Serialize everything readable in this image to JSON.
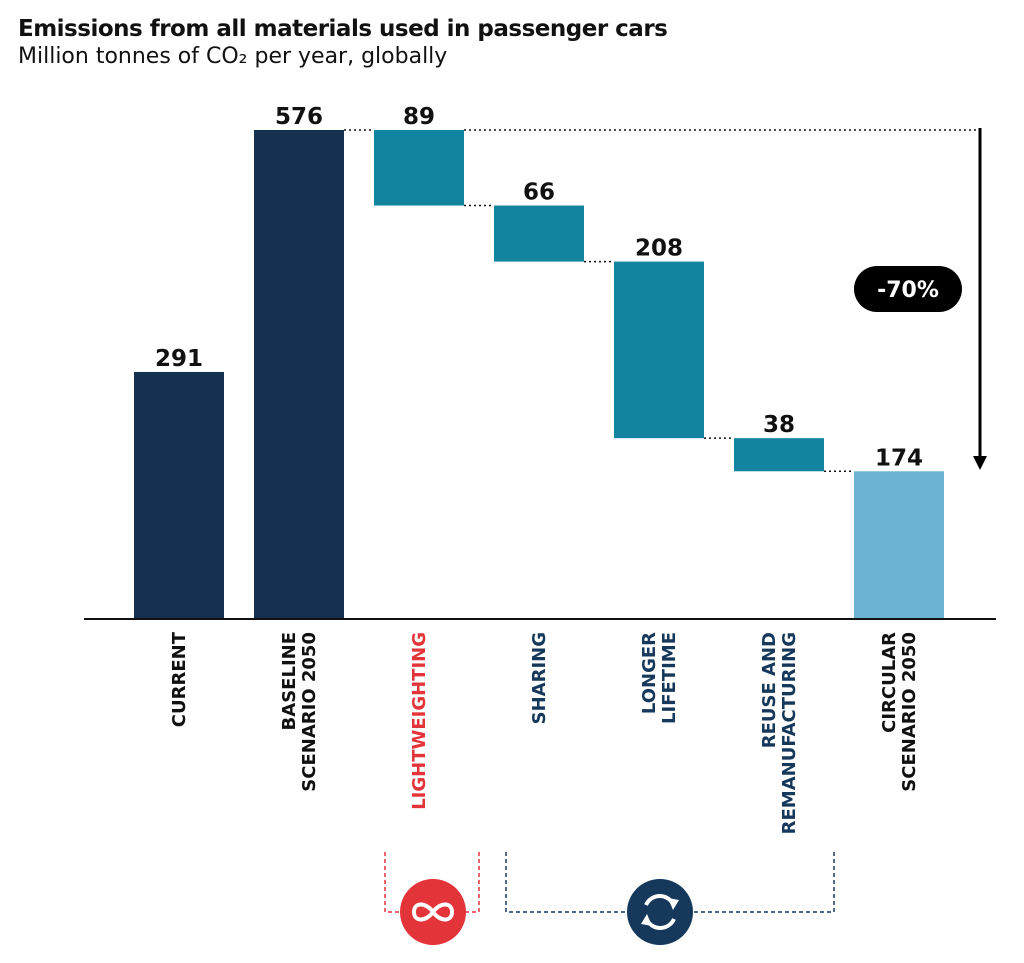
{
  "title": "Emissions from all materials used in passenger cars",
  "subtitle": "Million tonnes of CO₂ per year, globally",
  "reduction_label": "-70%",
  "colors": {
    "dark_bar": "#14324f",
    "step_bar": "#1284a0",
    "light_bar": "#6bb3d0",
    "lightweighting_text": "#e3343a",
    "strategy_text": "#16385a",
    "default_text": "#111111",
    "badge_bg": "#000000"
  },
  "icons": {
    "lightweighting": "infinity-icon",
    "circular_strategies": "circular-arrows-icon"
  },
  "chart_data": {
    "type": "waterfall",
    "title": "Emissions from all materials used in passenger cars",
    "subtitle": "Million tonnes of CO₂ per year, globally",
    "unit": "Million tonnes of CO₂ per year",
    "ylim": [
      0,
      600
    ],
    "grid": false,
    "categories": [
      "CURRENT",
      "BASELINE SCENARIO 2050",
      "LIGHTWEIGHTING",
      "SHARING",
      "LONGER LIFETIME",
      "REUSE AND REMANUFACTURING",
      "CIRCULAR SCENARIO 2050"
    ],
    "bars": [
      {
        "category": "CURRENT",
        "label_lines": [
          "CURRENT"
        ],
        "value": 291,
        "kind": "total",
        "style": "dark",
        "label_color": "default"
      },
      {
        "category": "BASELINE SCENARIO 2050",
        "label_lines": [
          "BASELINE",
          "SCENARIO 2050"
        ],
        "value": 576,
        "kind": "total",
        "style": "dark",
        "label_color": "default"
      },
      {
        "category": "LIGHTWEIGHTING",
        "label_lines": [
          "LIGHTWEIGHTING"
        ],
        "value": 89,
        "kind": "decrease",
        "start": 576,
        "end": 487,
        "style": "step",
        "label_color": "lightweighting"
      },
      {
        "category": "SHARING",
        "label_lines": [
          "SHARING"
        ],
        "value": 66,
        "kind": "decrease",
        "start": 487,
        "end": 421,
        "style": "step",
        "label_color": "strategy"
      },
      {
        "category": "LONGER LIFETIME",
        "label_lines": [
          "LONGER",
          "LIFETIME"
        ],
        "value": 208,
        "kind": "decrease",
        "start": 421,
        "end": 213,
        "style": "step",
        "label_color": "strategy"
      },
      {
        "category": "REUSE AND REMANUFACTURING",
        "label_lines": [
          "REUSE AND",
          "REMANUFACTURING"
        ],
        "value": 38,
        "kind": "decrease",
        "start": 213,
        "end": 174,
        "style": "step",
        "label_color": "strategy"
      },
      {
        "category": "CIRCULAR SCENARIO 2050",
        "label_lines": [
          "CIRCULAR",
          "SCENARIO 2050"
        ],
        "value": 174,
        "kind": "total",
        "style": "light",
        "label_color": "default"
      }
    ],
    "annotations": [
      {
        "text": "-70%",
        "from": 576,
        "to": 174
      }
    ]
  }
}
